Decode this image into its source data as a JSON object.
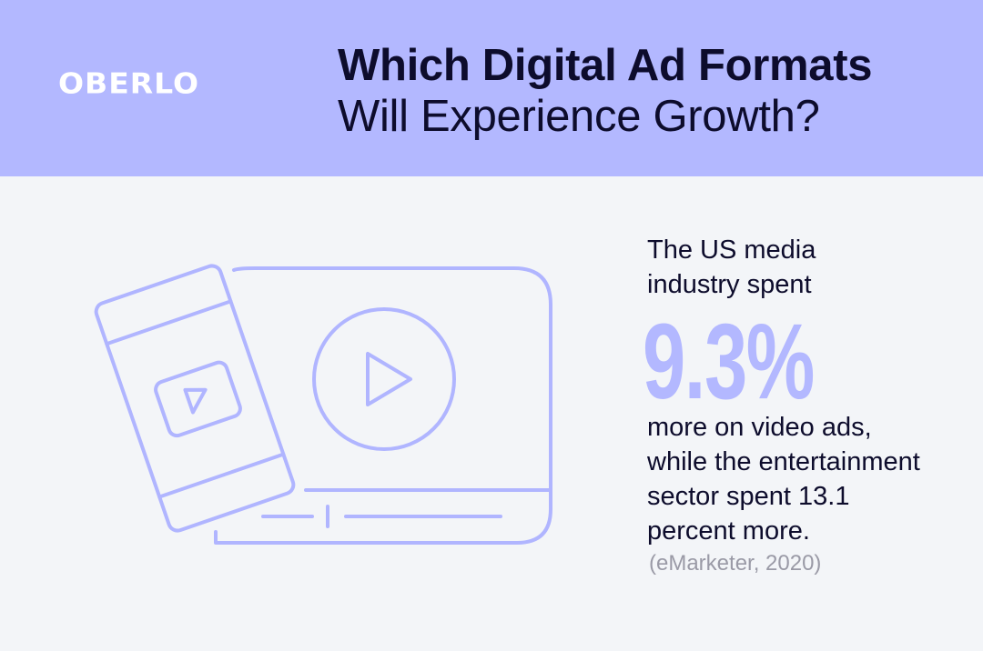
{
  "brand": {
    "logo_text": "OBERLO"
  },
  "header": {
    "title_line1": "Which Digital Ad Formats",
    "title_line2": "Will Experience Growth?"
  },
  "stat": {
    "intro_lines": [
      "The US media",
      "industry spent"
    ],
    "value": "9.3%",
    "body_lines": [
      "more on video ads,",
      "while the entertainment",
      "sector spent 13.1",
      "percent more."
    ],
    "source": "(eMarketer, 2020)"
  },
  "colors": {
    "header_bg": "#b3b8ff",
    "page_bg": "#f3f5f8",
    "accent": "#b3b8ff",
    "text": "#0d0c2c"
  },
  "icons": [
    "smartphone-video-icon",
    "video-player-icon",
    "play-icon"
  ]
}
